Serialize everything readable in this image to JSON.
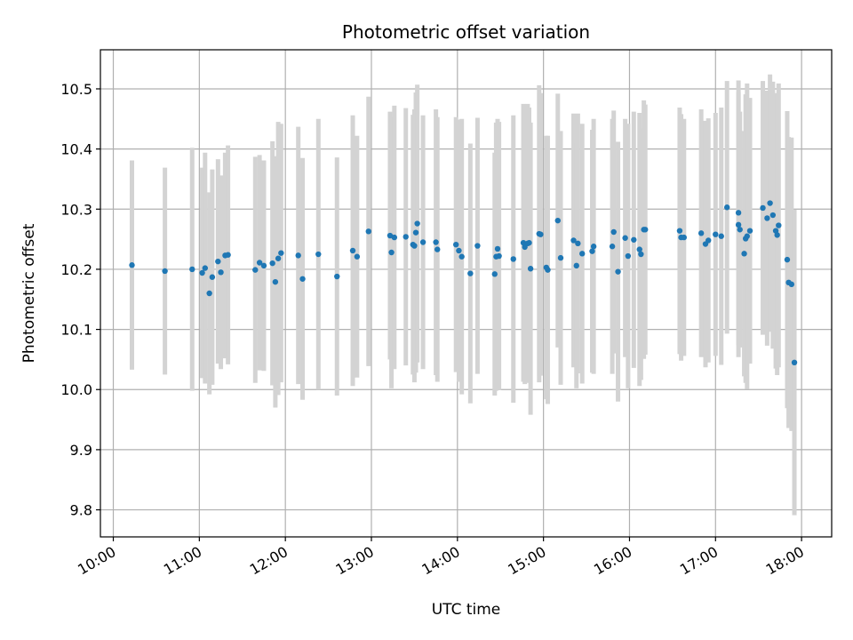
{
  "chart_data": {
    "type": "scatter",
    "title": "Photometric offset variation",
    "xlabel": "UTC time",
    "ylabel": "Photometric offset",
    "x_tick_labels": [
      "10:00",
      "11:00",
      "12:00",
      "13:00",
      "14:00",
      "15:00",
      "16:00",
      "17:00",
      "18:00"
    ],
    "x_ticks": [
      "10:00",
      "11:00",
      "12:00",
      "13:00",
      "14:00",
      "15:00",
      "16:00",
      "17:00",
      "18:00"
    ],
    "y_ticks": [
      9.8,
      9.9,
      10.0,
      10.1,
      10.2,
      10.3,
      10.4,
      10.5
    ],
    "y_tick_labels": [
      "9.8",
      "9.9",
      "10.0",
      "10.1",
      "10.2",
      "10.3",
      "10.4",
      "10.5"
    ],
    "xlim": [
      "09:51",
      "18:21"
    ],
    "ylim": [
      9.755,
      10.565
    ],
    "grid": true,
    "colors": {
      "point": "#1f77b4",
      "errorbar": "#d3d3d3",
      "grid": "#b0b0b0"
    },
    "series": [
      {
        "x": [
          "10:13",
          "10:36",
          "10:55",
          "11:02",
          "11:04",
          "11:07",
          "11:09",
          "11:13",
          "11:15",
          "11:18",
          "11:20",
          "11:39",
          "11:42",
          "11:45",
          "11:51",
          "11:53",
          "11:55",
          "11:57",
          "12:09",
          "12:12",
          "12:23",
          "12:36",
          "12:47",
          "12:50",
          "12:58",
          "13:13",
          "13:14",
          "13:16",
          "13:24",
          "13:29",
          "13:30",
          "13:31",
          "13:32",
          "13:36",
          "13:45",
          "13:46",
          "13:59",
          "14:01",
          "14:03",
          "14:09",
          "14:14",
          "14:26",
          "14:27",
          "14:28",
          "14:29",
          "14:39",
          "14:46",
          "14:47",
          "14:49",
          "14:50",
          "14:51",
          "14:57",
          "14:58",
          "15:02",
          "15:03",
          "15:10",
          "15:12",
          "15:21",
          "15:23",
          "15:24",
          "15:27",
          "15:34",
          "15:35",
          "15:48",
          "15:49",
          "15:52",
          "15:57",
          "15:59",
          "16:03",
          "16:07",
          "16:08",
          "16:10",
          "16:11",
          "16:35",
          "16:36",
          "16:38",
          "16:50",
          "16:53",
          "16:55",
          "17:00",
          "17:04",
          "17:08",
          "17:16",
          "17:16",
          "17:17",
          "17:20",
          "17:21",
          "17:22",
          "17:24",
          "17:33",
          "17:36",
          "17:38",
          "17:40",
          "17:42",
          "17:43",
          "17:44",
          "17:50",
          "17:51",
          "17:53",
          "17:55"
        ],
        "y": [
          10.207,
          10.197,
          10.2,
          10.194,
          10.202,
          10.16,
          10.187,
          10.213,
          10.195,
          10.223,
          10.224,
          10.199,
          10.211,
          10.206,
          10.21,
          10.179,
          10.218,
          10.227,
          10.223,
          10.184,
          10.225,
          10.188,
          10.231,
          10.221,
          10.263,
          10.256,
          10.228,
          10.253,
          10.254,
          10.241,
          10.239,
          10.261,
          10.276,
          10.245,
          10.245,
          10.233,
          10.241,
          10.231,
          10.221,
          10.193,
          10.239,
          10.192,
          10.221,
          10.234,
          10.222,
          10.217,
          10.244,
          10.237,
          10.243,
          10.244,
          10.201,
          10.259,
          10.258,
          10.203,
          10.199,
          10.281,
          10.219,
          10.248,
          10.206,
          10.243,
          10.226,
          10.23,
          10.238,
          10.238,
          10.262,
          10.196,
          10.252,
          10.222,
          10.249,
          10.233,
          10.225,
          10.266,
          10.266,
          10.264,
          10.253,
          10.253,
          10.26,
          10.242,
          10.248,
          10.258,
          10.255,
          10.303,
          10.274,
          10.294,
          10.266,
          10.226,
          10.251,
          10.255,
          10.264,
          10.302,
          10.285,
          10.31,
          10.29,
          10.264,
          10.257,
          10.273,
          10.216,
          10.178,
          10.175,
          10.045
        ],
        "err": [
          0.174,
          0.172,
          0.202,
          0.175,
          0.192,
          0.168,
          0.179,
          0.17,
          0.161,
          0.171,
          0.182,
          0.188,
          0.179,
          0.175,
          0.203,
          0.209,
          0.227,
          0.215,
          0.214,
          0.201,
          0.225,
          0.198,
          0.225,
          0.201,
          0.224,
          0.206,
          0.226,
          0.219,
          0.214,
          0.216,
          0.227,
          0.233,
          0.231,
          0.211,
          0.221,
          0.22,
          0.212,
          0.218,
          0.229,
          0.216,
          0.213,
          0.202,
          0.223,
          0.216,
          0.223,
          0.239,
          0.231,
          0.228,
          0.232,
          0.225,
          0.243,
          0.247,
          0.235,
          0.219,
          0.223,
          0.211,
          0.211,
          0.211,
          0.204,
          0.216,
          0.216,
          0.202,
          0.212,
          0.212,
          0.202,
          0.216,
          0.198,
          0.22,
          0.213,
          0.227,
          0.209,
          0.215,
          0.208,
          0.205,
          0.205,
          0.197,
          0.206,
          0.205,
          0.203,
          0.202,
          0.214,
          0.21,
          0.22,
          0.22,
          0.196,
          0.204,
          0.24,
          0.254,
          0.221,
          0.211,
          0.212,
          0.214,
          0.222,
          0.229,
          0.233,
          0.236,
          0.247,
          0.242,
          0.244,
          0.254
        ]
      }
    ]
  }
}
